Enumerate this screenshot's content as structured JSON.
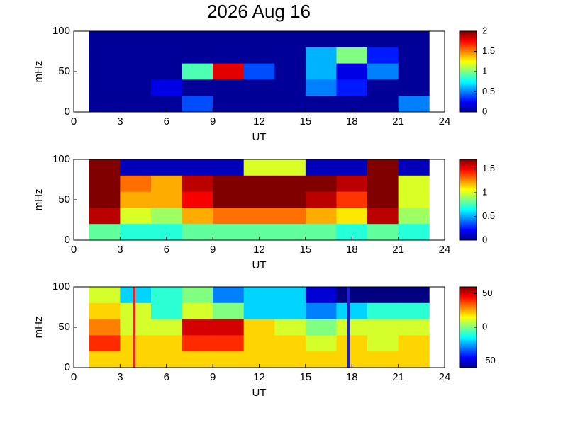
{
  "chart_data": [
    {
      "type": "heatmap",
      "title": "2026 Aug 16",
      "xlabel": "UT",
      "ylabel": "mHz",
      "xlim": [
        0,
        24
      ],
      "xticks": [
        0,
        3,
        6,
        9,
        12,
        15,
        18,
        21,
        24
      ],
      "ylim": [
        0,
        100
      ],
      "yticks": [
        0,
        50,
        100
      ],
      "x": [
        2,
        4,
        6,
        8,
        10,
        12,
        14,
        16,
        18,
        20,
        22
      ],
      "y": [
        90,
        70,
        50,
        30,
        10
      ],
      "z": [
        [
          0.05,
          0.05,
          0.05,
          0.05,
          0.05,
          0.05,
          0.05,
          0.05,
          0.05,
          0.05,
          0.05
        ],
        [
          0.05,
          0.05,
          0.05,
          0.05,
          0.05,
          0.05,
          0.05,
          0.6,
          1.0,
          0.3,
          0.05
        ],
        [
          0.05,
          0.05,
          0.05,
          0.9,
          1.8,
          0.4,
          0.05,
          0.6,
          0.2,
          0.5,
          0.05
        ],
        [
          0.05,
          0.05,
          0.2,
          0.05,
          0.05,
          0.05,
          0.05,
          0.5,
          0.3,
          0.05,
          0.05
        ],
        [
          0.05,
          0.05,
          0.05,
          0.4,
          0.05,
          0.05,
          0.05,
          0.05,
          0.05,
          0.05,
          0.5
        ]
      ],
      "clim": [
        0,
        2
      ],
      "cticks": [
        0,
        0.5,
        1,
        1.5,
        2
      ]
    },
    {
      "type": "heatmap",
      "xlabel": "UT",
      "ylabel": "mHz",
      "xlim": [
        0,
        24
      ],
      "xticks": [
        0,
        3,
        6,
        9,
        12,
        15,
        18,
        21,
        24
      ],
      "ylim": [
        0,
        100
      ],
      "yticks": [
        0,
        50,
        100
      ],
      "x": [
        2,
        4,
        6,
        8,
        10,
        12,
        14,
        16,
        18,
        20,
        22
      ],
      "y": [
        90,
        70,
        50,
        30,
        10
      ],
      "z": [
        [
          1.7,
          0.1,
          0.1,
          0.1,
          0.1,
          1.0,
          1.0,
          0.1,
          0.1,
          1.7,
          0.1
        ],
        [
          1.7,
          1.3,
          1.2,
          1.6,
          1.7,
          1.7,
          1.7,
          1.7,
          1.6,
          1.7,
          1.0
        ],
        [
          1.7,
          1.2,
          1.2,
          1.5,
          1.7,
          1.7,
          1.7,
          1.6,
          1.4,
          1.7,
          1.0
        ],
        [
          1.6,
          1.0,
          0.9,
          1.2,
          1.3,
          1.3,
          1.3,
          1.2,
          1.1,
          1.6,
          0.9
        ],
        [
          0.8,
          0.7,
          0.7,
          0.8,
          0.8,
          0.8,
          0.8,
          0.8,
          0.7,
          0.8,
          0.7
        ]
      ],
      "clim": [
        0,
        1.7
      ],
      "cticks": [
        0,
        0.5,
        1,
        1.5
      ]
    },
    {
      "type": "heatmap",
      "xlabel": "UT",
      "ylabel": "mHz",
      "xlim": [
        0,
        24
      ],
      "xticks": [
        0,
        3,
        6,
        9,
        12,
        15,
        18,
        21,
        24
      ],
      "ylim": [
        0,
        100
      ],
      "yticks": [
        0,
        50,
        100
      ],
      "x": [
        2,
        4,
        6,
        8,
        10,
        12,
        14,
        16,
        18,
        20,
        22
      ],
      "y": [
        90,
        70,
        50,
        30,
        10
      ],
      "z": [
        [
          10,
          -20,
          -10,
          0,
          -30,
          -20,
          -20,
          -50,
          -60,
          -60,
          -60
        ],
        [
          20,
          10,
          -10,
          10,
          0,
          -20,
          -20,
          -30,
          -20,
          -10,
          -10
        ],
        [
          30,
          10,
          10,
          50,
          50,
          20,
          10,
          0,
          10,
          10,
          10
        ],
        [
          40,
          20,
          20,
          40,
          40,
          20,
          20,
          10,
          20,
          10,
          20
        ],
        [
          20,
          20,
          20,
          20,
          20,
          20,
          20,
          20,
          20,
          20,
          20
        ]
      ],
      "clim": [
        -60,
        60
      ],
      "cticks": [
        -50,
        0,
        50
      ],
      "vlines": [
        {
          "x": 3.9,
          "color": "#e8281e"
        },
        {
          "x": 17.8,
          "color": "#1f1fd0"
        }
      ]
    }
  ]
}
